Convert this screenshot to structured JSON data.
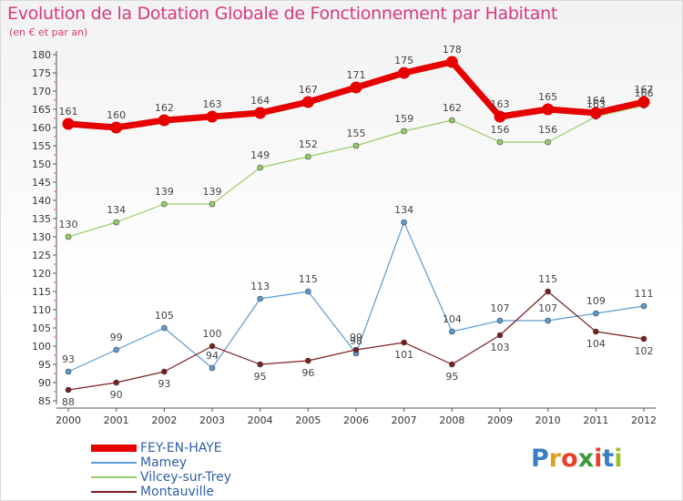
{
  "chart_data": {
    "type": "line",
    "title": "Evolution de la Dotation Globale de Fonctionnement par Habitant",
    "subtitle": "(en € et par an)",
    "categories": [
      "2000",
      "2001",
      "2002",
      "2003",
      "2004",
      "2005",
      "2006",
      "2007",
      "2008",
      "2009",
      "2010",
      "2011",
      "2012"
    ],
    "ylim": [
      85,
      180
    ],
    "yticks": [
      85,
      90,
      95,
      100,
      105,
      110,
      115,
      120,
      125,
      130,
      135,
      140,
      145,
      150,
      155,
      160,
      165,
      170,
      175,
      180
    ],
    "grid": false,
    "series": [
      {
        "name": "FEY-EN-HAYE",
        "color": "#e60000",
        "values": [
          161,
          160,
          162,
          163,
          164,
          167,
          171,
          175,
          178,
          163,
          165,
          164,
          167
        ]
      },
      {
        "name": "Mamey",
        "color": "#5b9bd5",
        "values": [
          93,
          99,
          105,
          94,
          113,
          115,
          98,
          134,
          104,
          107,
          107,
          109,
          111
        ]
      },
      {
        "name": "Vilcey-sur-Trey",
        "color": "#99cc66",
        "values": [
          130,
          134,
          139,
          139,
          149,
          152,
          155,
          159,
          162,
          156,
          156,
          163,
          166
        ]
      },
      {
        "name": "Montauville",
        "color": "#7a1f1f",
        "values": [
          88,
          90,
          93,
          100,
          95,
          96,
          99,
          101,
          95,
          103,
          115,
          104,
          102
        ]
      }
    ]
  },
  "logo": {
    "text": "Proxiti"
  }
}
